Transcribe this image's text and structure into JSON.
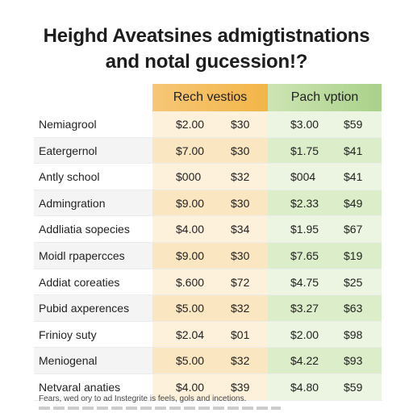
{
  "title": {
    "line1": "Heighd Aveatsines admigtistnations",
    "line2": "and notal gucession!?"
  },
  "table": {
    "headers": {
      "reach": "Rech vestios",
      "pach": "Pach vption"
    },
    "rows": [
      {
        "label": "Nemiagrool",
        "v1": "$2.00",
        "v2": "$30",
        "v3": "$3.00",
        "v4": "$59"
      },
      {
        "label": "Eatergernol",
        "v1": "$7.00",
        "v2": "$30",
        "v3": "$1.75",
        "v4": "$41"
      },
      {
        "label": "Antly school",
        "v1": "$000",
        "v2": "$32",
        "v3": "$004",
        "v4": "$41"
      },
      {
        "label": "Admingration",
        "v1": "$9.00",
        "v2": "$30",
        "v3": "$2.33",
        "v4": "$49"
      },
      {
        "label": "Addliatia sopecies",
        "v1": "$4.00",
        "v2": "$34",
        "v3": "$1.95",
        "v4": "$67"
      },
      {
        "label": "Moidl rpapercces",
        "v1": "$9.00",
        "v2": "$30",
        "v3": "$7.65",
        "v4": "$19"
      },
      {
        "label": "Addiat coreaties",
        "v1": "$.600",
        "v2": "$72",
        "v3": "$4.75",
        "v4": "$25"
      },
      {
        "label": "Pubid axperences",
        "v1": "$5.00",
        "v2": "$32",
        "v3": "$3.27",
        "v4": "$63"
      },
      {
        "label": "Frinioy suty",
        "v1": "$2.04",
        "v2": "$01",
        "v3": "$2.00",
        "v4": "$98"
      },
      {
        "label": "Meniogenal",
        "v1": "$5.00",
        "v2": "$32",
        "v3": "$4.22",
        "v4": "$93"
      },
      {
        "label": "Netvaral anaties",
        "v1": "$4.00",
        "v2": "$39",
        "v3": "$4.80",
        "v4": "$59"
      }
    ]
  },
  "footnote": "Fears, wed ory to ad Instegrite is feels, gols and incetions."
}
